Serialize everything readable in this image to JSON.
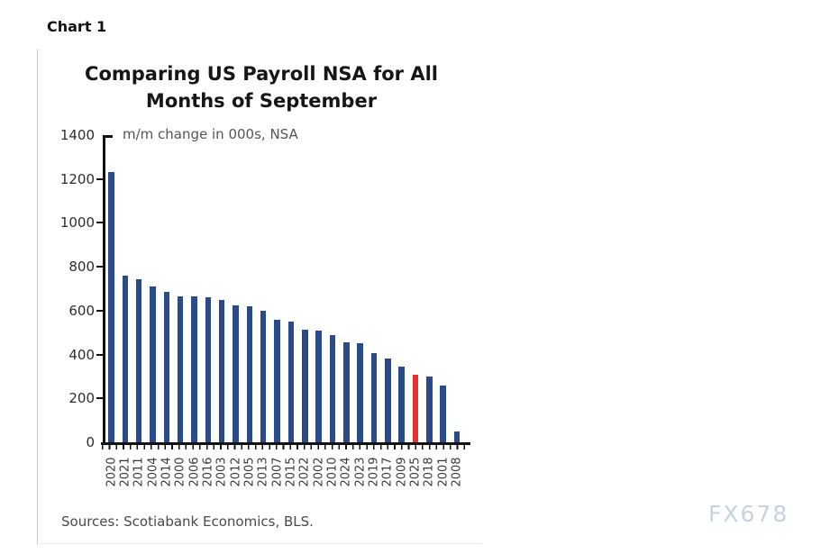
{
  "page": {
    "chart_label": "Chart 1",
    "sources": "Sources: Scotiabank Economics, BLS.",
    "watermark": "FX678"
  },
  "chart": {
    "title_line1": "Comparing US Payroll NSA for All",
    "title_line2": "Months of September",
    "subtitle": "m/m change in 000s, NSA",
    "colors": {
      "bar": "#2a4a8a",
      "highlight_bar": "#e8312e",
      "axis": "#111111",
      "watermark": "#c7d2e1"
    }
  },
  "chart_data": {
    "type": "bar",
    "title": "Comparing US Payroll NSA for All Months of September",
    "subtitle": "m/m change in 000s, NSA",
    "xlabel": "",
    "ylabel": "m/m change in 000s, NSA",
    "ylim": [
      0,
      1400
    ],
    "yticks": [
      0,
      200,
      400,
      600,
      800,
      1000,
      1200,
      1400
    ],
    "grid": false,
    "legend": false,
    "highlight_category": "2025",
    "categories": [
      "2020",
      "2021",
      "2011",
      "2004",
      "2014",
      "2000",
      "2006",
      "2016",
      "2003",
      "2012",
      "2005",
      "2013",
      "2007",
      "2015",
      "2022",
      "2002",
      "2010",
      "2024",
      "2023",
      "2019",
      "2017",
      "2009",
      "2025",
      "2018",
      "2001",
      "2008"
    ],
    "values": [
      1230,
      760,
      745,
      710,
      685,
      665,
      665,
      660,
      650,
      625,
      620,
      600,
      560,
      550,
      515,
      510,
      490,
      455,
      450,
      405,
      380,
      345,
      310,
      300,
      260,
      50
    ]
  }
}
